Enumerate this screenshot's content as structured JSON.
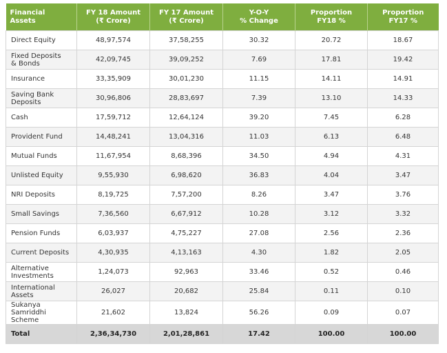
{
  "table": {
    "headers": [
      [
        "Financial",
        "Assets"
      ],
      [
        "FY 18 Amount",
        "(₹ Crore)"
      ],
      [
        "FY 17 Amount",
        "(₹ Crore)"
      ],
      [
        "Y-O-Y",
        "% Change"
      ],
      [
        "Proportion",
        "FY18 %"
      ],
      [
        "Proportion",
        "FY17 %"
      ]
    ],
    "rows": [
      {
        "asset": [
          "Direct Equity"
        ],
        "fy18": "48,97,574",
        "fy17": "37,58,255",
        "yoy": "30.32",
        "p18": "20.72",
        "p17": "18.67"
      },
      {
        "asset": [
          "Fixed Deposits",
          "& Bonds"
        ],
        "fy18": "42,09,745",
        "fy17": "39,09,252",
        "yoy": "7.69",
        "p18": "17.81",
        "p17": "19.42"
      },
      {
        "asset": [
          "Insurance"
        ],
        "fy18": "33,35,909",
        "fy17": "30,01,230",
        "yoy": "11.15",
        "p18": "14.11",
        "p17": "14.91"
      },
      {
        "asset": [
          "Saving Bank",
          "Deposits"
        ],
        "fy18": "30,96,806",
        "fy17": "28,83,697",
        "yoy": "7.39",
        "p18": "13.10",
        "p17": "14.33"
      },
      {
        "asset": [
          "Cash"
        ],
        "fy18": "17,59,712",
        "fy17": "12,64,124",
        "yoy": "39.20",
        "p18": "7.45",
        "p17": "6.28"
      },
      {
        "asset": [
          "Provident Fund"
        ],
        "fy18": "14,48,241",
        "fy17": "13,04,316",
        "yoy": "11.03",
        "p18": "6.13",
        "p17": "6.48"
      },
      {
        "asset": [
          "Mutual Funds"
        ],
        "fy18": "11,67,954",
        "fy17": "8,68,396",
        "yoy": "34.50",
        "p18": "4.94",
        "p17": "4.31"
      },
      {
        "asset": [
          "Unlisted Equity"
        ],
        "fy18": "9,55,930",
        "fy17": "6,98,620",
        "yoy": "36.83",
        "p18": "4.04",
        "p17": "3.47"
      },
      {
        "asset": [
          "NRI Deposits"
        ],
        "fy18": "8,19,725",
        "fy17": "7,57,200",
        "yoy": "8.26",
        "p18": "3.47",
        "p17": "3.76"
      },
      {
        "asset": [
          "Small Savings"
        ],
        "fy18": "7,36,560",
        "fy17": "6,67,912",
        "yoy": "10.28",
        "p18": "3.12",
        "p17": "3.32"
      },
      {
        "asset": [
          "Pension Funds"
        ],
        "fy18": "6,03,937",
        "fy17": "4,75,227",
        "yoy": "27.08",
        "p18": "2.56",
        "p17": "2.36"
      },
      {
        "asset": [
          "Current Deposits"
        ],
        "fy18": "4,30,935",
        "fy17": "4,13,163",
        "yoy": "4.30",
        "p18": "1.82",
        "p17": "2.05"
      },
      {
        "asset": [
          "Alternative",
          "Investments"
        ],
        "fy18": "1,24,073",
        "fy17": "92,963",
        "yoy": "33.46",
        "p18": "0.52",
        "p17": "0.46"
      },
      {
        "asset": [
          "International",
          "Assets"
        ],
        "fy18": "26,027",
        "fy17": "20,682",
        "yoy": "25.84",
        "p18": "0.11",
        "p17": "0.10"
      },
      {
        "asset": [
          "Sukanya",
          "Samriddhi Scheme"
        ],
        "fy18": "21,602",
        "fy17": "13,824",
        "yoy": "56.26",
        "p18": "0.09",
        "p17": "0.07"
      }
    ],
    "total": {
      "label": "Total",
      "fy18": "2,36,34,730",
      "fy17": "2,01,28,861",
      "yoy": "17.42",
      "p18": "100.00",
      "p17": "100.00"
    }
  }
}
